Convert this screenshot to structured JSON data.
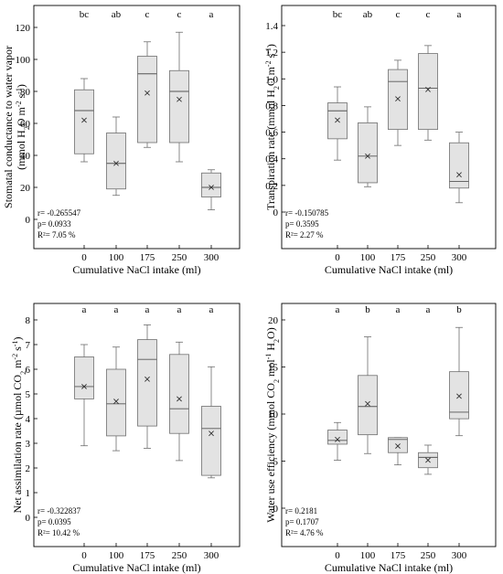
{
  "chart_data": [
    {
      "type": "box",
      "ylabel": "Stomatal conductance to water vapor (mmol H2O m-2 s-1)",
      "ylabel_parts": {
        "line1": "Stomatal conductance to water vapor",
        "open": "(mmol H",
        "sub": "2",
        "mid": "O m",
        "sup1": "-2",
        "mid2": " s",
        "sup2": "-1",
        "close": ")"
      },
      "xlabel": "Cumulative NaCl intake (ml)",
      "ylim": [
        0,
        120
      ],
      "yticks": [
        "0",
        "20",
        "40",
        "60",
        "80",
        "100",
        "120"
      ],
      "categories": [
        "0",
        "100",
        "175",
        "250",
        "300"
      ],
      "letters": [
        "bc",
        "ab",
        "c",
        "c",
        "a"
      ],
      "stats": {
        "r": "r= -0.265547",
        "p": "p= 0.0933",
        "r2": "R²= 7.05 %"
      },
      "boxes": [
        {
          "min": 36,
          "q1": 41,
          "median": 68,
          "q3": 81,
          "max": 88,
          "mean": 62
        },
        {
          "min": 15,
          "q1": 19,
          "median": 35,
          "q3": 54,
          "max": 64,
          "mean": 35
        },
        {
          "min": 45,
          "q1": 48,
          "median": 91,
          "q3": 102,
          "max": 111,
          "mean": 79
        },
        {
          "min": 36,
          "q1": 48,
          "median": 80,
          "q3": 93,
          "max": 117,
          "mean": 75
        },
        {
          "min": 6,
          "q1": 14,
          "median": 20,
          "q3": 29,
          "max": 31,
          "mean": 20
        }
      ]
    },
    {
      "type": "box",
      "ylabel": "Transpiration rate (mmol H2O m-2 s-1)",
      "ylabel_parts": {
        "open": "Transpiration rate (mmol H",
        "sub": "2",
        "mid": "O m",
        "sup1": "-2",
        "mid2": " s",
        "sup2": "-1",
        "close": ")"
      },
      "xlabel": "Cumulative NaCl intake (ml)",
      "ylim": [
        0,
        1.4
      ],
      "yticks": [
        "0",
        "0.2",
        "0.4",
        "0.6",
        "0.8",
        "1.0",
        "1.2",
        "1.4"
      ],
      "categories": [
        "0",
        "100",
        "175",
        "250",
        "300"
      ],
      "letters": [
        "bc",
        "ab",
        "c",
        "c",
        "a"
      ],
      "stats": {
        "r": "r= -0.150785",
        "p": "p= 0.3595",
        "r2": "R²= 2.27 %"
      },
      "boxes": [
        {
          "min": 0.39,
          "q1": 0.55,
          "median": 0.76,
          "q3": 0.82,
          "max": 0.94,
          "mean": 0.69
        },
        {
          "min": 0.19,
          "q1": 0.22,
          "median": 0.42,
          "q3": 0.67,
          "max": 0.79,
          "mean": 0.42
        },
        {
          "min": 0.5,
          "q1": 0.62,
          "median": 0.98,
          "q3": 1.07,
          "max": 1.14,
          "mean": 0.85
        },
        {
          "min": 0.54,
          "q1": 0.62,
          "median": 0.93,
          "q3": 1.19,
          "max": 1.25,
          "mean": 0.92
        },
        {
          "min": 0.07,
          "q1": 0.18,
          "median": 0.23,
          "q3": 0.52,
          "max": 0.6,
          "mean": 0.28
        }
      ]
    },
    {
      "type": "box",
      "ylabel": "Net assimilation rate (µmol CO2 m-2 s-1)",
      "ylabel_parts": {
        "open": "Net assimilation rate (µmol CO",
        "sub": "2",
        "mid": " m",
        "sup1": "-2",
        "mid2": " s",
        "sup2": "-1",
        "close": ")"
      },
      "xlabel": "Cumulative NaCl intake (ml)",
      "ylim": [
        0,
        8
      ],
      "yticks": [
        "0",
        "1",
        "2",
        "3",
        "4",
        "5",
        "6",
        "7",
        "8"
      ],
      "categories": [
        "0",
        "100",
        "175",
        "250",
        "300"
      ],
      "letters": [
        "a",
        "a",
        "a",
        "a",
        "a"
      ],
      "stats": {
        "r": "r= -0.322837",
        "p": "p= 0.0395",
        "r2": "R²= 10.42 %"
      },
      "boxes": [
        {
          "min": 2.9,
          "q1": 4.8,
          "median": 5.3,
          "q3": 6.5,
          "max": 7.0,
          "mean": 5.3
        },
        {
          "min": 2.7,
          "q1": 3.3,
          "median": 4.6,
          "q3": 6.0,
          "max": 6.9,
          "mean": 4.7
        },
        {
          "min": 2.8,
          "q1": 3.7,
          "median": 6.4,
          "q3": 7.2,
          "max": 7.8,
          "mean": 5.6
        },
        {
          "min": 2.3,
          "q1": 3.4,
          "median": 4.4,
          "q3": 6.6,
          "max": 7.1,
          "mean": 4.8
        },
        {
          "min": 1.6,
          "q1": 1.7,
          "median": 3.6,
          "q3": 4.5,
          "max": 6.1,
          "mean": 3.4
        }
      ]
    },
    {
      "type": "box",
      "ylabel": "Water use efficiency (mmol CO2 mol-1 H2O)",
      "ylabel_parts": {
        "open": "Water use efficiency (mmol CO",
        "sub": "2",
        "mid": " mol",
        "sup1": "-1",
        "mid2": " H",
        "sub2": "2",
        "close": "O)"
      },
      "xlabel": "Cumulative NaCl intake (ml)",
      "ylim": [
        0,
        20
      ],
      "yticks": [
        "0",
        "5",
        "10",
        "15",
        "20"
      ],
      "categories": [
        "0",
        "100",
        "175",
        "250",
        "300"
      ],
      "letters": [
        "a",
        "b",
        "a",
        "a",
        "b"
      ],
      "stats": {
        "r": "r= 0.2181",
        "p": "p= 0.1707",
        "r2": "R²= 4.76 %"
      },
      "boxes": [
        {
          "min": 5.1,
          "q1": 6.8,
          "median": 7.2,
          "q3": 8.3,
          "max": 9.1,
          "mean": 7.3
        },
        {
          "min": 5.8,
          "q1": 7.8,
          "median": 10.8,
          "q3": 14.1,
          "max": 18.2,
          "mean": 11.1
        },
        {
          "min": 4.6,
          "q1": 5.9,
          "median": 7.3,
          "q3": 7.5,
          "max": 7.5,
          "mean": 6.6
        },
        {
          "min": 3.6,
          "q1": 4.3,
          "median": 5.4,
          "q3": 5.9,
          "max": 6.7,
          "mean": 5.1
        },
        {
          "min": 7.7,
          "q1": 9.5,
          "median": 10.2,
          "q3": 14.5,
          "max": 19.2,
          "mean": 11.9
        }
      ]
    }
  ]
}
